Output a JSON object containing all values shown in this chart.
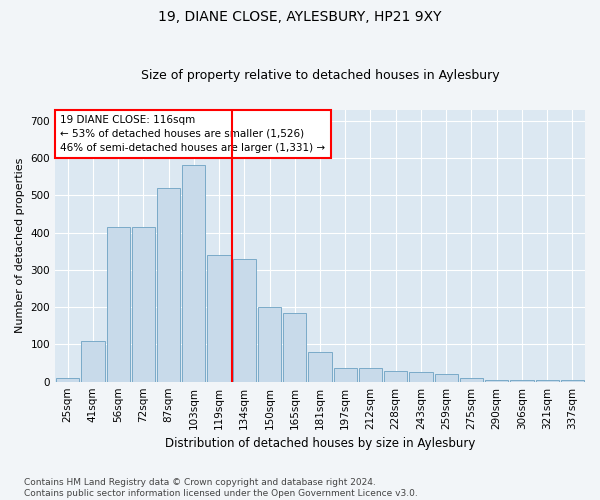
{
  "title1": "19, DIANE CLOSE, AYLESBURY, HP21 9XY",
  "title2": "Size of property relative to detached houses in Aylesbury",
  "xlabel": "Distribution of detached houses by size in Aylesbury",
  "ylabel": "Number of detached properties",
  "bar_labels": [
    "25sqm",
    "41sqm",
    "56sqm",
    "72sqm",
    "87sqm",
    "103sqm",
    "119sqm",
    "134sqm",
    "150sqm",
    "165sqm",
    "181sqm",
    "197sqm",
    "212sqm",
    "228sqm",
    "243sqm",
    "259sqm",
    "275sqm",
    "290sqm",
    "306sqm",
    "321sqm",
    "337sqm"
  ],
  "bar_values": [
    10,
    110,
    415,
    415,
    520,
    580,
    340,
    330,
    200,
    185,
    80,
    38,
    38,
    28,
    25,
    20,
    10,
    5,
    5,
    5,
    5
  ],
  "bar_color": "#c8daea",
  "bar_edgecolor": "#7aaac8",
  "vline_index": 6.5,
  "vline_color": "red",
  "annotation_text": "19 DIANE CLOSE: 116sqm\n← 53% of detached houses are smaller (1,526)\n46% of semi-detached houses are larger (1,331) →",
  "annotation_box_facecolor": "white",
  "annotation_box_edgecolor": "red",
  "ylim": [
    0,
    730
  ],
  "yticks": [
    0,
    100,
    200,
    300,
    400,
    500,
    600,
    700
  ],
  "footer": "Contains HM Land Registry data © Crown copyright and database right 2024.\nContains public sector information licensed under the Open Government Licence v3.0.",
  "bg_color": "#f2f5f8",
  "plot_bg_color": "#dce8f2",
  "title_fontsize": 10,
  "subtitle_fontsize": 9,
  "xlabel_fontsize": 8.5,
  "ylabel_fontsize": 8,
  "tick_fontsize": 7.5,
  "annotation_fontsize": 7.5,
  "footer_fontsize": 6.5
}
